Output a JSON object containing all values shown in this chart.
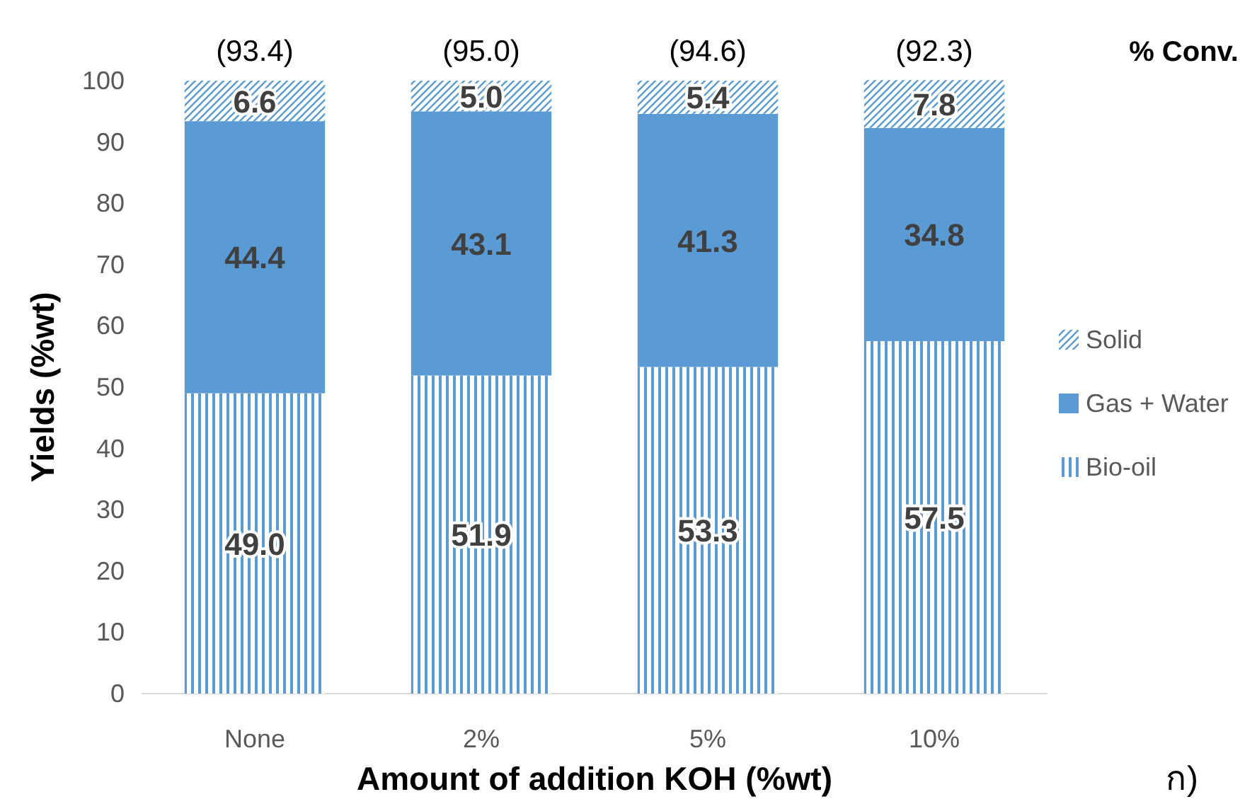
{
  "chart_data": {
    "type": "bar",
    "stacked": true,
    "categories": [
      "None",
      "2%",
      "5%",
      "10%"
    ],
    "series": [
      {
        "name": "Bio-oil",
        "color": "#5b9bd5",
        "values": [
          49.0,
          51.9,
          53.3,
          57.5
        ],
        "value_labels": [
          "49.0",
          "51.9",
          "53.3",
          "57.5"
        ]
      },
      {
        "name": "Gas + Water",
        "color": "#5b9bd5",
        "values": [
          44.4,
          43.1,
          41.3,
          34.8
        ],
        "value_labels": [
          "44.4",
          "43.1",
          "41.3",
          "34.8"
        ]
      },
      {
        "name": "Solid",
        "color": "#5b9bd5",
        "values": [
          6.6,
          5.0,
          5.4,
          7.8
        ],
        "value_labels": [
          "6.6",
          "5.0",
          "5.4",
          "7.8"
        ]
      }
    ],
    "xlabel": "Amount of addition KOH (%wt)",
    "ylabel": "Yields (%wt)",
    "ylim": [
      0,
      100
    ],
    "yticks": [
      0,
      10,
      20,
      30,
      40,
      50,
      60,
      70,
      80,
      90,
      100
    ],
    "grid": false,
    "legend": "right",
    "annotations": [
      "(93.4)",
      "(95.0)",
      "(94.6)",
      "(92.3)",
      "% Conv.",
      "ก)"
    ]
  }
}
